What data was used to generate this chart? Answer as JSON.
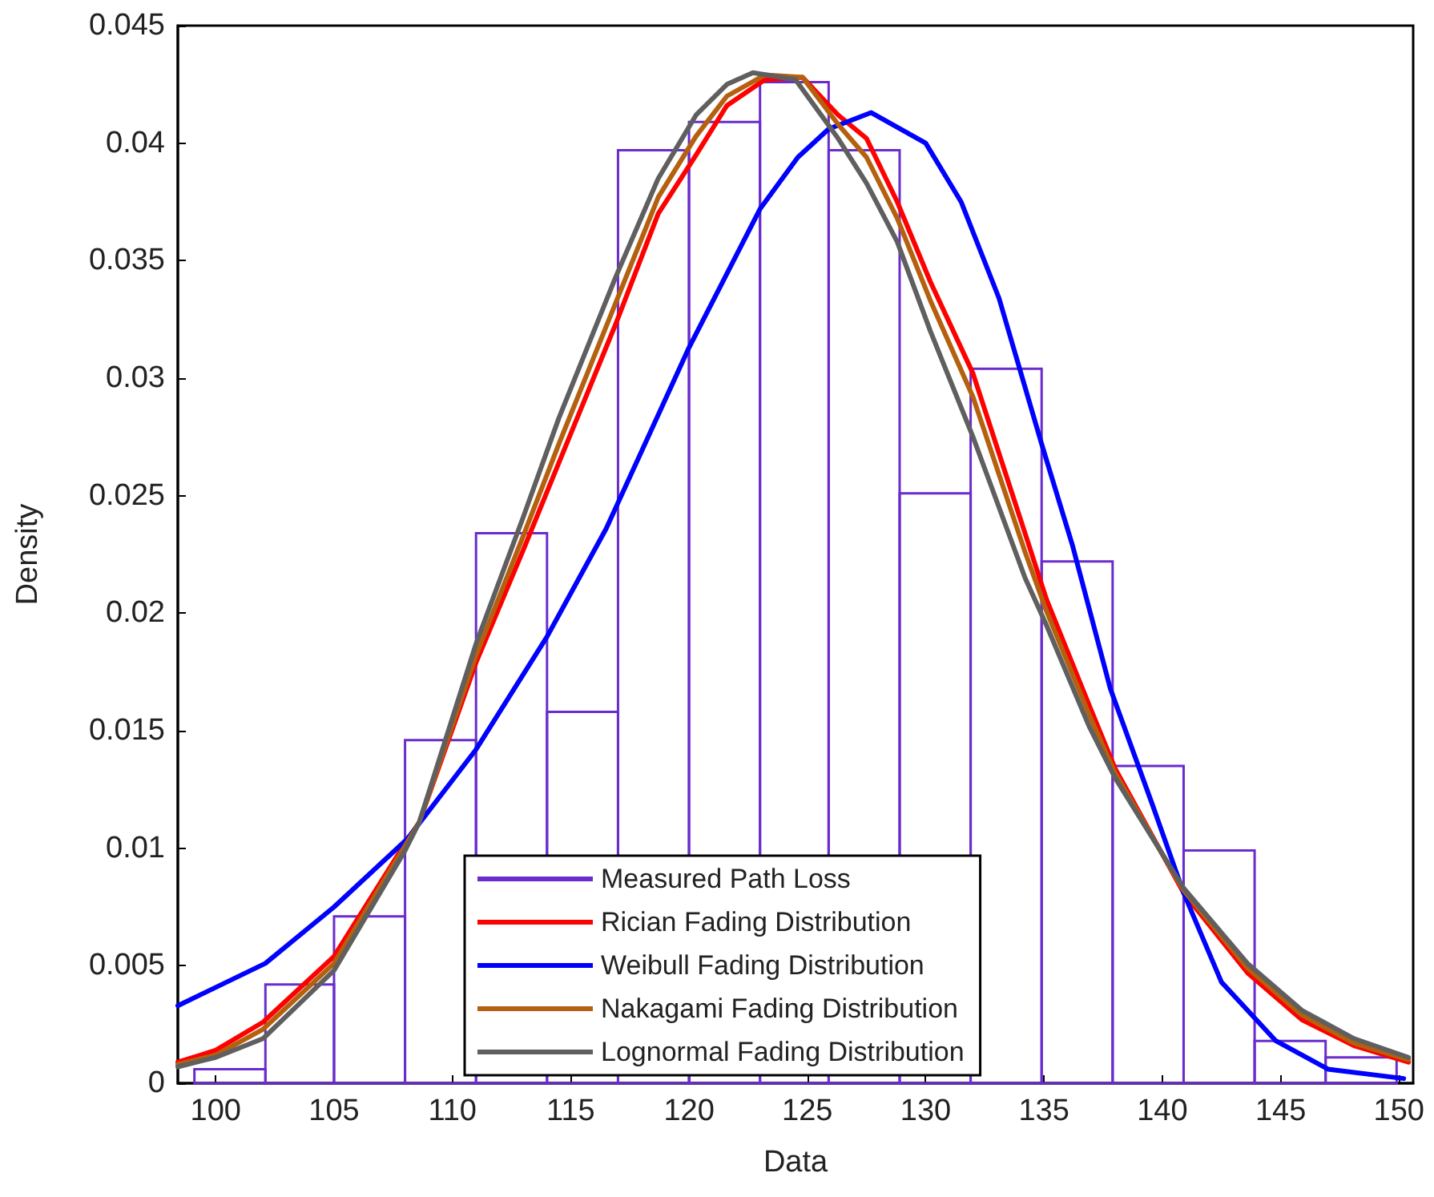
{
  "chart_data": {
    "type": "histogram",
    "xlabel": "Data",
    "ylabel": "Density",
    "xlim": [
      98.4,
      150.6
    ],
    "xticks": [
      100,
      105,
      110,
      115,
      120,
      125,
      130,
      135,
      140,
      145,
      150
    ],
    "ylim": [
      0,
      0.045
    ],
    "yticks": [
      0,
      0.005,
      0.01,
      0.015,
      0.02,
      0.025,
      0.03,
      0.035,
      0.04,
      0.045
    ],
    "grid": false,
    "legend": "bottom",
    "marker": "none",
    "line_style": "solid",
    "series": [
      {
        "name": "Measured Path Loss",
        "color": "#6a2ccc",
        "bins": [
          99.1,
          102.1,
          105.0,
          108.0,
          111.0,
          114.0,
          117.0,
          120.0,
          123.0,
          125.9,
          128.9,
          131.9,
          134.9,
          137.9,
          140.9,
          143.9,
          146.9,
          149.9
        ],
        "values": [
          0.0006,
          0.0042,
          0.0071,
          0.0146,
          0.0234,
          0.0158,
          0.0397,
          0.0409,
          0.0426,
          0.0397,
          0.0251,
          0.0304,
          0.0222,
          0.0135,
          0.0099,
          0.0018,
          0.0011
        ]
      },
      {
        "type": "line",
        "name": "Rician Fading Distribution",
        "color": "#ff0000",
        "x": [
          98.4,
          100,
          102,
          105,
          108,
          108.6,
          111,
          113,
          114.5,
          116.9,
          118.7,
          120.3,
          121.6,
          123.2,
          124.8,
          126.3,
          127.5,
          128.8,
          130.2,
          132,
          134.2,
          135.1,
          136.9,
          138,
          140.9,
          143.6,
          145.9,
          148.1,
          150.4
        ],
        "values": [
          0.0009,
          0.0014,
          0.0026,
          0.0054,
          0.0102,
          0.0111,
          0.0179,
          0.0227,
          0.0264,
          0.0323,
          0.037,
          0.0395,
          0.0416,
          0.0427,
          0.0428,
          0.0412,
          0.0402,
          0.0375,
          0.0341,
          0.0302,
          0.0234,
          0.0206,
          0.0161,
          0.0134,
          0.0081,
          0.0047,
          0.0027,
          0.0016,
          0.0009
        ]
      },
      {
        "type": "line",
        "name": "Weibull Fading Distribution",
        "color": "#0000ff",
        "x": [
          98.4,
          102.1,
          105,
          108.1,
          111,
          114,
          116.5,
          117.5,
          120,
          123,
          124.6,
          125.9,
          127.7,
          130,
          131.5,
          133.1,
          134.9,
          136.2,
          137.8,
          139.6,
          140.9,
          142.5,
          144.8,
          147,
          150.2
        ],
        "values": [
          0.0033,
          0.0051,
          0.0075,
          0.0104,
          0.0142,
          0.019,
          0.0236,
          0.0258,
          0.0313,
          0.0372,
          0.0394,
          0.0406,
          0.0413,
          0.04,
          0.0375,
          0.0334,
          0.0272,
          0.0229,
          0.0168,
          0.0118,
          0.0081,
          0.0043,
          0.0018,
          0.0006,
          0.0002
        ]
      },
      {
        "type": "line",
        "name": "Nakagami Fading Distribution",
        "color": "#b5600e",
        "x": [
          98.4,
          100,
          102,
          105,
          108,
          108.6,
          111,
          113,
          114.5,
          116.9,
          118.7,
          120.3,
          121.6,
          123.2,
          124.8,
          126.3,
          127.5,
          128.8,
          130.2,
          132,
          134.2,
          135.1,
          136.9,
          138,
          140.9,
          143.6,
          145.9,
          148.1,
          150.4
        ],
        "values": [
          0.0008,
          0.0012,
          0.0023,
          0.0051,
          0.0101,
          0.0111,
          0.0182,
          0.0233,
          0.0272,
          0.0332,
          0.0377,
          0.0403,
          0.042,
          0.0429,
          0.0428,
          0.0408,
          0.0394,
          0.0368,
          0.0333,
          0.0292,
          0.0226,
          0.0201,
          0.0157,
          0.0132,
          0.0082,
          0.0049,
          0.0029,
          0.0017,
          0.001
        ]
      },
      {
        "type": "line",
        "name": "Lognormal Fading Distribution",
        "color": "#5f5f5f",
        "x": [
          98.4,
          100,
          102,
          105,
          108,
          108.6,
          111,
          113,
          114.5,
          116.9,
          118.7,
          120.3,
          121.6,
          122.7,
          124.5,
          126.3,
          127.5,
          128.8,
          130.2,
          132,
          134.2,
          135.1,
          136.9,
          138,
          140.9,
          143.6,
          145.9,
          148.1,
          150.4
        ],
        "values": [
          0.0007,
          0.0011,
          0.0019,
          0.0048,
          0.0099,
          0.0111,
          0.0187,
          0.0241,
          0.0283,
          0.0343,
          0.0385,
          0.0412,
          0.0425,
          0.043,
          0.0427,
          0.0402,
          0.0383,
          0.0358,
          0.032,
          0.0275,
          0.0215,
          0.0195,
          0.0152,
          0.013,
          0.0083,
          0.0051,
          0.0031,
          0.0019,
          0.0011
        ]
      }
    ]
  }
}
